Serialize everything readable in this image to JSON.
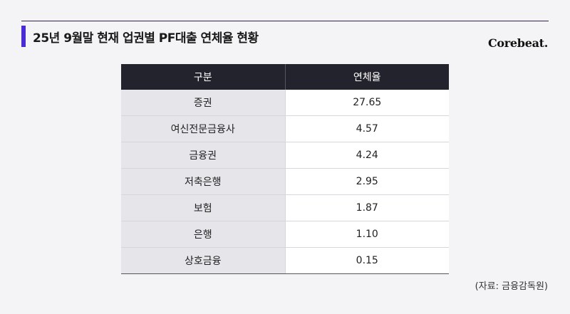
{
  "title": "25년 9월말 현재 업권별 PF대출 연체율 현황",
  "brand": "Corebeat.",
  "colors": {
    "accent_bar": "#4a2bd6",
    "header_bg": "#23232e",
    "label_col_bg": "#e6e6ea"
  },
  "table": {
    "headers": [
      "구분",
      "연체율"
    ],
    "rows": [
      {
        "label": "증권",
        "value": "27.65"
      },
      {
        "label": "여신전문금융사",
        "value": "4.57"
      },
      {
        "label": "금융권",
        "value": "4.24"
      },
      {
        "label": "저축은행",
        "value": "2.95"
      },
      {
        "label": "보험",
        "value": "1.87"
      },
      {
        "label": "은행",
        "value": "1.10"
      },
      {
        "label": "상호금융",
        "value": "0.15"
      }
    ]
  },
  "source": "(자료: 금융감독원)"
}
